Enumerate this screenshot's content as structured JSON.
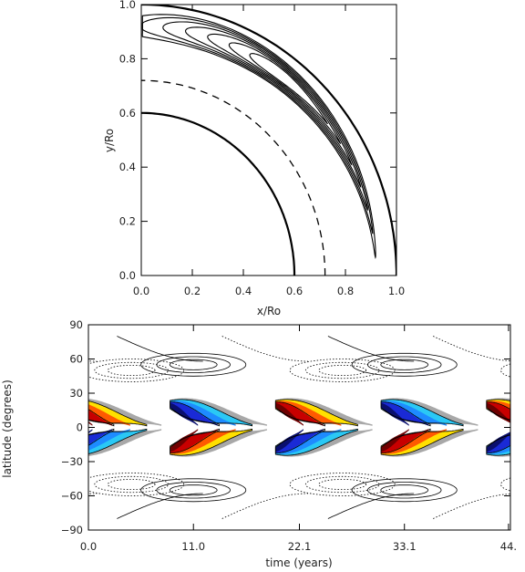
{
  "chart_data": [
    {
      "type": "contour",
      "title": "",
      "xlabel": "x/Ro",
      "ylabel": "y/Ro",
      "xlim": [
        0.0,
        1.0
      ],
      "ylim": [
        0.0,
        1.0
      ],
      "xticks": [
        "0.0",
        "0.2",
        "0.4",
        "0.6",
        "0.8",
        "1.0"
      ],
      "yticks": [
        "0.0",
        "0.2",
        "0.4",
        "0.6",
        "0.8",
        "1.0"
      ],
      "boundaries": [
        {
          "kind": "solid",
          "radius": 1.0
        },
        {
          "kind": "solid",
          "radius": 0.6
        },
        {
          "kind": "dashed",
          "radius": 0.72
        }
      ],
      "streamlines": {
        "count": 7,
        "center_radius": 0.92,
        "center_angle_deg": 50
      }
    },
    {
      "type": "heatmap",
      "title": "",
      "xlabel": "time (years)",
      "ylabel": "latitude (degrees)",
      "xticks": [
        "0.0",
        "11.0",
        "22.1",
        "33.1",
        "44."
      ],
      "yticks": [
        "90",
        "60",
        "30",
        "0",
        "−30",
        "−60",
        "−90"
      ],
      "xlim": [
        0.0,
        44.2
      ],
      "ylim": [
        -90,
        90
      ],
      "period_years": 22.1,
      "colormap": [
        "#1a2ad6",
        "#1e8bff",
        "#2ac8f5",
        "#a8a8a8",
        "#ffe000",
        "#ff5a00",
        "#c80000",
        "#6e0000"
      ],
      "contour_style": {
        "positive": "solid",
        "negative": "dotted"
      }
    }
  ]
}
